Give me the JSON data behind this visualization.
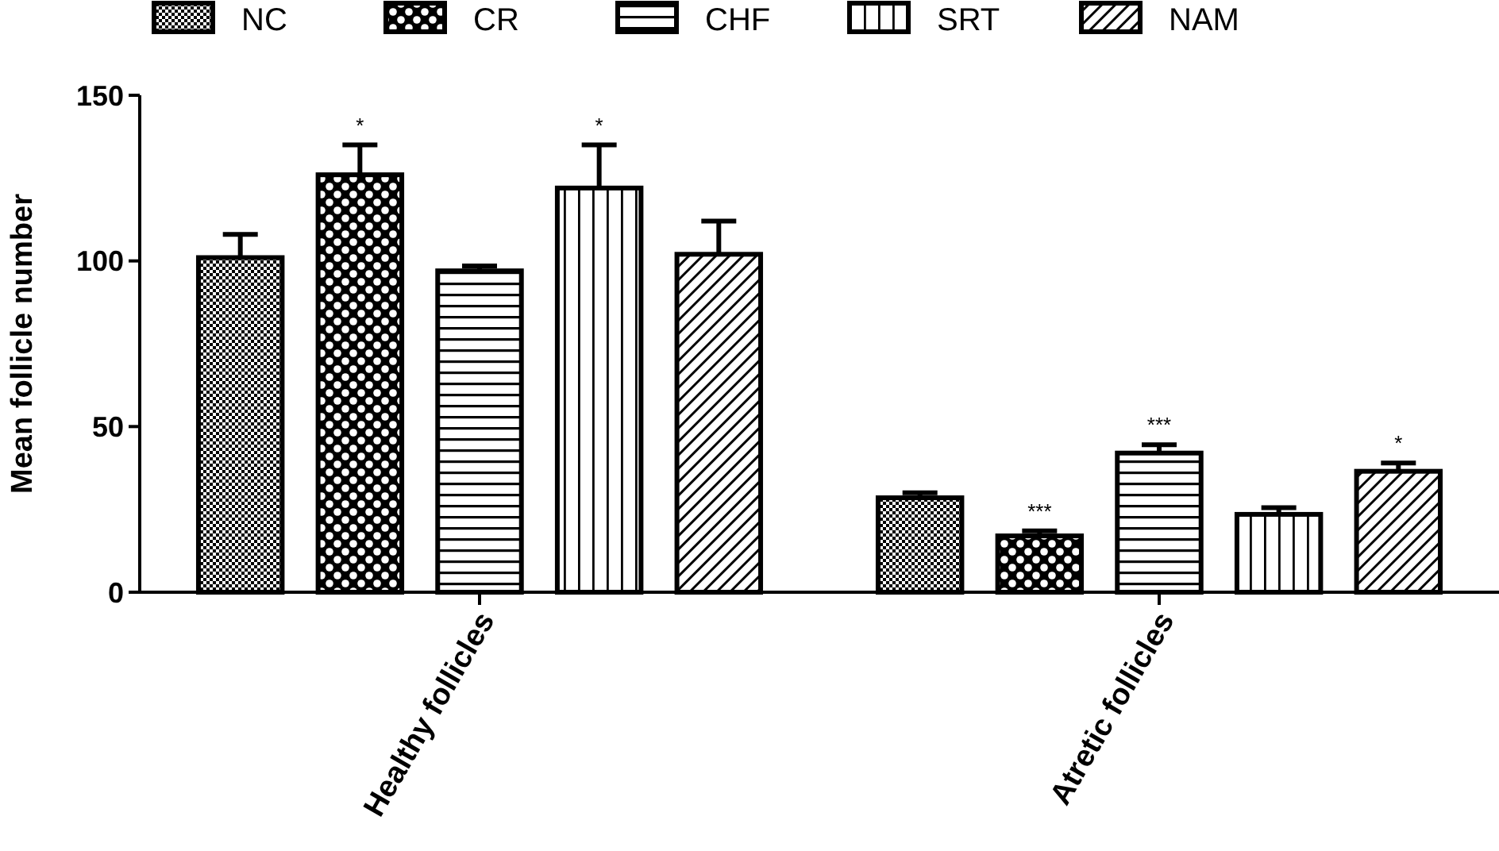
{
  "chart_data": {
    "type": "bar",
    "ylabel": "Mean follicle number",
    "categories": [
      "Healthy follicles",
      "Atretic follicles"
    ],
    "series": [
      {
        "name": "NC",
        "color": "#000000",
        "values": [
          101,
          28.5
        ],
        "errors": [
          7,
          1.5
        ]
      },
      {
        "name": "CR",
        "color": "#000000",
        "values": [
          126,
          17
        ],
        "errors": [
          9,
          1.5
        ],
        "value_labels": [
          "*",
          "***"
        ]
      },
      {
        "name": "CHF",
        "color": "#000000",
        "values": [
          97,
          42
        ],
        "errors": [
          1.5,
          2.5
        ],
        "value_labels": [
          null,
          "***"
        ]
      },
      {
        "name": "SRT",
        "color": "#000000",
        "values": [
          122,
          23.5
        ],
        "errors": [
          13,
          2
        ],
        "value_labels": [
          "*",
          null
        ]
      },
      {
        "name": "NAM",
        "color": "#000000",
        "values": [
          102,
          36.5
        ],
        "errors": [
          10,
          2.5
        ],
        "value_labels": [
          null,
          "*"
        ]
      }
    ],
    "ylim": [
      0,
      150
    ],
    "yticks": [
      0,
      50,
      100,
      150
    ],
    "legend": "top",
    "grid": false
  }
}
